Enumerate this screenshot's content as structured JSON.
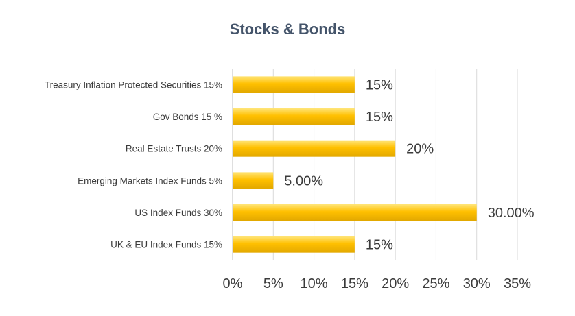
{
  "chart_data": {
    "type": "bar",
    "orientation": "horizontal",
    "title": "Stocks & Bonds",
    "categories": [
      "Treasury Inflation Protected Securities 15%",
      "Gov Bonds 15 %",
      "Real Estate Trusts 20%",
      "Emerging Markets Index Funds 5%",
      "US Index Funds 30%",
      "UK & EU Index Funds 15%"
    ],
    "values": [
      0.15,
      0.15,
      0.2,
      0.05,
      0.3,
      0.15
    ],
    "data_labels": [
      "15%",
      "15%",
      "20%",
      "5.00%",
      "30.00%",
      "15%"
    ],
    "x_ticks": [
      "0%",
      "5%",
      "10%",
      "15%",
      "20%",
      "25%",
      "30%",
      "35%"
    ],
    "xlim": [
      0,
      0.35
    ],
    "grid": true,
    "legend": "none",
    "colors": {
      "bar_top": "#FFE57A",
      "bar_mid": "#FFC000",
      "bar_bottom": "#E2A800",
      "title": "#44546A",
      "label": "#3B3B3B",
      "grid": "#D9D9D9"
    }
  }
}
